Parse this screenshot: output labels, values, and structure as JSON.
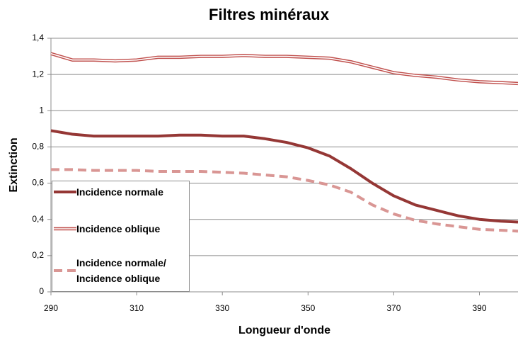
{
  "chart_data": {
    "type": "line",
    "title": "Filtres minéraux",
    "xlabel": "Longueur d'onde",
    "ylabel": "Extinction",
    "x": [
      290,
      295,
      300,
      305,
      310,
      315,
      320,
      325,
      330,
      335,
      340,
      345,
      350,
      355,
      360,
      365,
      370,
      375,
      380,
      385,
      390,
      395,
      399
    ],
    "series": [
      {
        "name": "Incidence normale",
        "color": "#953735",
        "style": "solid",
        "values": [
          0.89,
          0.87,
          0.86,
          0.86,
          0.86,
          0.86,
          0.865,
          0.865,
          0.86,
          0.86,
          0.845,
          0.825,
          0.795,
          0.75,
          0.68,
          0.6,
          0.53,
          0.48,
          0.45,
          0.42,
          0.4,
          0.39,
          0.385
        ]
      },
      {
        "name": "Incidence oblique",
        "color": "#c0504d",
        "style": "double",
        "values": [
          1.315,
          1.28,
          1.28,
          1.275,
          1.28,
          1.295,
          1.295,
          1.3,
          1.3,
          1.305,
          1.3,
          1.3,
          1.295,
          1.29,
          1.27,
          1.24,
          1.21,
          1.195,
          1.185,
          1.17,
          1.16,
          1.155,
          1.15
        ]
      },
      {
        "name": "Incidence normale/ Incidence oblique",
        "color": "#d99694",
        "style": "dashed",
        "values": [
          0.675,
          0.675,
          0.67,
          0.67,
          0.67,
          0.665,
          0.665,
          0.665,
          0.66,
          0.655,
          0.645,
          0.635,
          0.615,
          0.59,
          0.55,
          0.48,
          0.43,
          0.395,
          0.375,
          0.36,
          0.345,
          0.34,
          0.335
        ]
      }
    ],
    "xlim": [
      290,
      399
    ],
    "xticks": [
      290,
      310,
      330,
      350,
      370,
      390
    ],
    "ylim": [
      0,
      1.4
    ],
    "yticks": [
      0,
      {
        "value": 0.2,
        "label": "0,2"
      },
      {
        "value": 0.4,
        "label": "0,4"
      },
      {
        "value": 0.6,
        "label": "0,6"
      },
      {
        "value": 0.8,
        "label": "0,8"
      },
      1,
      {
        "value": 1.2,
        "label": "1,2"
      },
      {
        "value": 1.4,
        "label": "1,4"
      }
    ],
    "grid": true,
    "legend": "lower left"
  }
}
